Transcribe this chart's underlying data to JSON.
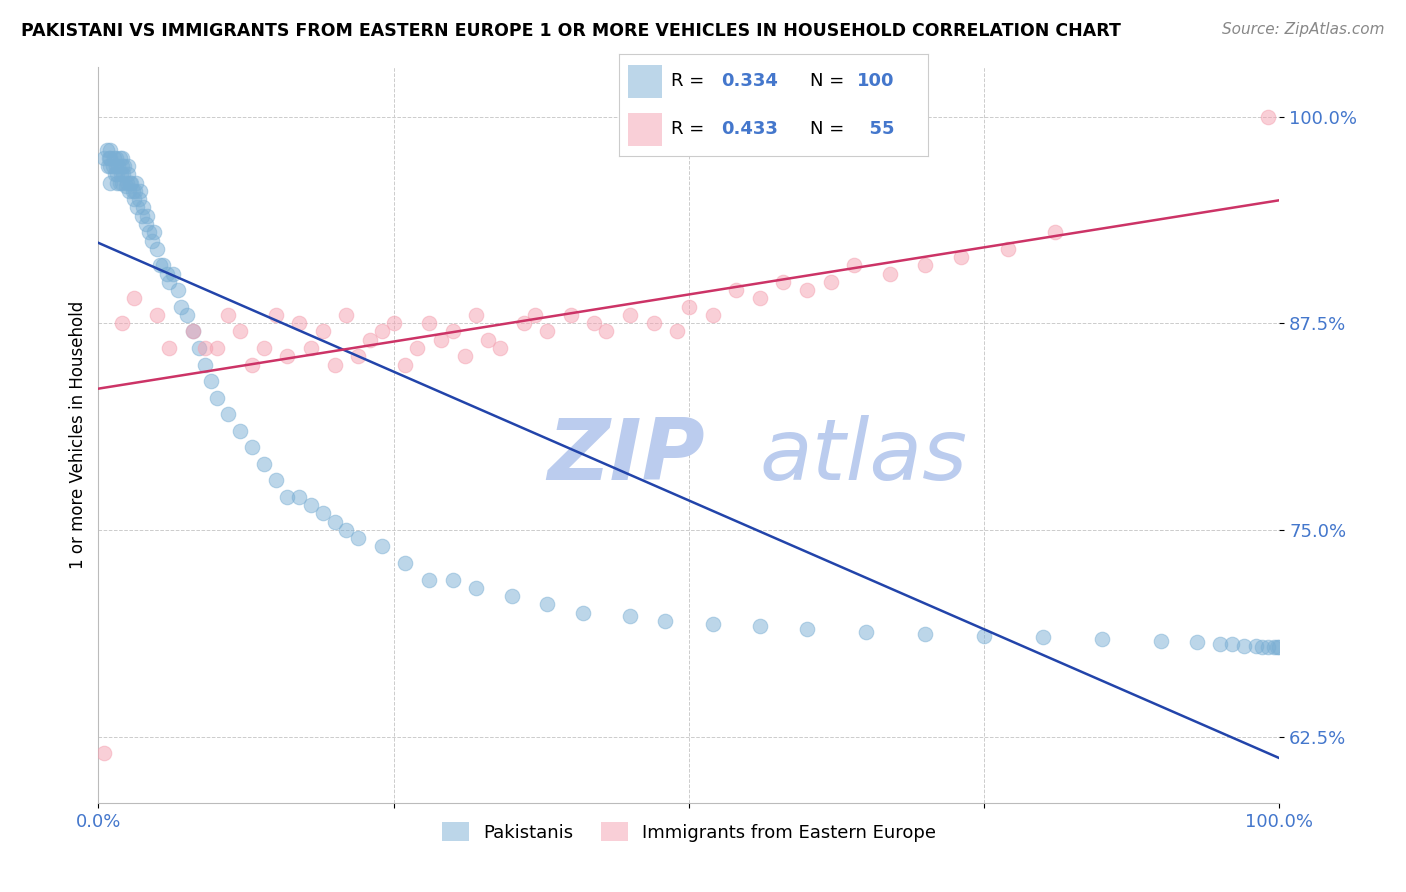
{
  "title": "PAKISTANI VS IMMIGRANTS FROM EASTERN EUROPE 1 OR MORE VEHICLES IN HOUSEHOLD CORRELATION CHART",
  "source": "Source: ZipAtlas.com",
  "ylabel": "1 or more Vehicles in Household",
  "legend_label1": "Pakistanis",
  "legend_label2": "Immigrants from Eastern Europe",
  "R1": 0.334,
  "N1": 100,
  "R2": 0.433,
  "N2": 55,
  "color1": "#7BAFD4",
  "color2": "#F4A0B0",
  "trendline1_color": "#2244AA",
  "trendline2_color": "#CC3366",
  "background_color": "#FFFFFF",
  "xlim": [
    0.0,
    1.0
  ],
  "ylim": [
    0.585,
    1.03
  ],
  "yticks": [
    0.625,
    0.75,
    0.875,
    1.0
  ],
  "ytick_labels": [
    "62.5%",
    "75.0%",
    "87.5%",
    "100.0%"
  ],
  "tick_color": "#4477CC",
  "grid_color": "#CCCCCC",
  "watermark_zip": "ZIP",
  "watermark_atlas": "atlas",
  "zip_color": "#BBCCEE",
  "atlas_color": "#BBCCEE",
  "pak_x": [
    0.005,
    0.007,
    0.008,
    0.009,
    0.01,
    0.01,
    0.01,
    0.01,
    0.012,
    0.013,
    0.014,
    0.015,
    0.015,
    0.016,
    0.016,
    0.017,
    0.018,
    0.018,
    0.019,
    0.02,
    0.02,
    0.02,
    0.021,
    0.022,
    0.023,
    0.024,
    0.025,
    0.025,
    0.026,
    0.027,
    0.028,
    0.029,
    0.03,
    0.031,
    0.032,
    0.033,
    0.034,
    0.035,
    0.037,
    0.038,
    0.04,
    0.041,
    0.043,
    0.045,
    0.047,
    0.05,
    0.052,
    0.055,
    0.058,
    0.06,
    0.063,
    0.067,
    0.07,
    0.075,
    0.08,
    0.085,
    0.09,
    0.095,
    0.1,
    0.11,
    0.12,
    0.13,
    0.14,
    0.15,
    0.16,
    0.17,
    0.18,
    0.19,
    0.2,
    0.21,
    0.22,
    0.24,
    0.26,
    0.28,
    0.3,
    0.32,
    0.35,
    0.38,
    0.41,
    0.45,
    0.48,
    0.52,
    0.56,
    0.6,
    0.65,
    0.7,
    0.75,
    0.8,
    0.85,
    0.9,
    0.93,
    0.95,
    0.96,
    0.97,
    0.98,
    0.985,
    0.99,
    0.995,
    0.998,
    1.0
  ],
  "pak_y": [
    0.975,
    0.98,
    0.97,
    0.975,
    0.97,
    0.975,
    0.98,
    0.96,
    0.97,
    0.975,
    0.965,
    0.97,
    0.975,
    0.96,
    0.965,
    0.97,
    0.975,
    0.96,
    0.965,
    0.97,
    0.975,
    0.96,
    0.965,
    0.97,
    0.958,
    0.96,
    0.965,
    0.97,
    0.955,
    0.96,
    0.96,
    0.955,
    0.95,
    0.955,
    0.96,
    0.945,
    0.95,
    0.955,
    0.94,
    0.945,
    0.935,
    0.94,
    0.93,
    0.925,
    0.93,
    0.92,
    0.91,
    0.91,
    0.905,
    0.9,
    0.905,
    0.895,
    0.885,
    0.88,
    0.87,
    0.86,
    0.85,
    0.84,
    0.83,
    0.82,
    0.81,
    0.8,
    0.79,
    0.78,
    0.77,
    0.77,
    0.765,
    0.76,
    0.755,
    0.75,
    0.745,
    0.74,
    0.73,
    0.72,
    0.72,
    0.715,
    0.71,
    0.705,
    0.7,
    0.698,
    0.695,
    0.693,
    0.692,
    0.69,
    0.688,
    0.687,
    0.686,
    0.685,
    0.684,
    0.683,
    0.682,
    0.681,
    0.681,
    0.68,
    0.68,
    0.679,
    0.679,
    0.679,
    0.679,
    0.679
  ],
  "ee_x": [
    0.005,
    0.02,
    0.03,
    0.05,
    0.06,
    0.08,
    0.09,
    0.1,
    0.11,
    0.12,
    0.13,
    0.14,
    0.15,
    0.16,
    0.17,
    0.18,
    0.19,
    0.2,
    0.21,
    0.22,
    0.23,
    0.24,
    0.25,
    0.26,
    0.27,
    0.28,
    0.29,
    0.3,
    0.31,
    0.32,
    0.33,
    0.34,
    0.36,
    0.37,
    0.38,
    0.4,
    0.42,
    0.43,
    0.45,
    0.47,
    0.49,
    0.5,
    0.52,
    0.54,
    0.56,
    0.58,
    0.6,
    0.62,
    0.64,
    0.67,
    0.7,
    0.73,
    0.77,
    0.81,
    0.99
  ],
  "ee_y": [
    0.615,
    0.875,
    0.89,
    0.88,
    0.86,
    0.87,
    0.86,
    0.86,
    0.88,
    0.87,
    0.85,
    0.86,
    0.88,
    0.855,
    0.875,
    0.86,
    0.87,
    0.85,
    0.88,
    0.855,
    0.865,
    0.87,
    0.875,
    0.85,
    0.86,
    0.875,
    0.865,
    0.87,
    0.855,
    0.88,
    0.865,
    0.86,
    0.875,
    0.88,
    0.87,
    0.88,
    0.875,
    0.87,
    0.88,
    0.875,
    0.87,
    0.885,
    0.88,
    0.895,
    0.89,
    0.9,
    0.895,
    0.9,
    0.91,
    0.905,
    0.91,
    0.915,
    0.92,
    0.93,
    1.0
  ]
}
